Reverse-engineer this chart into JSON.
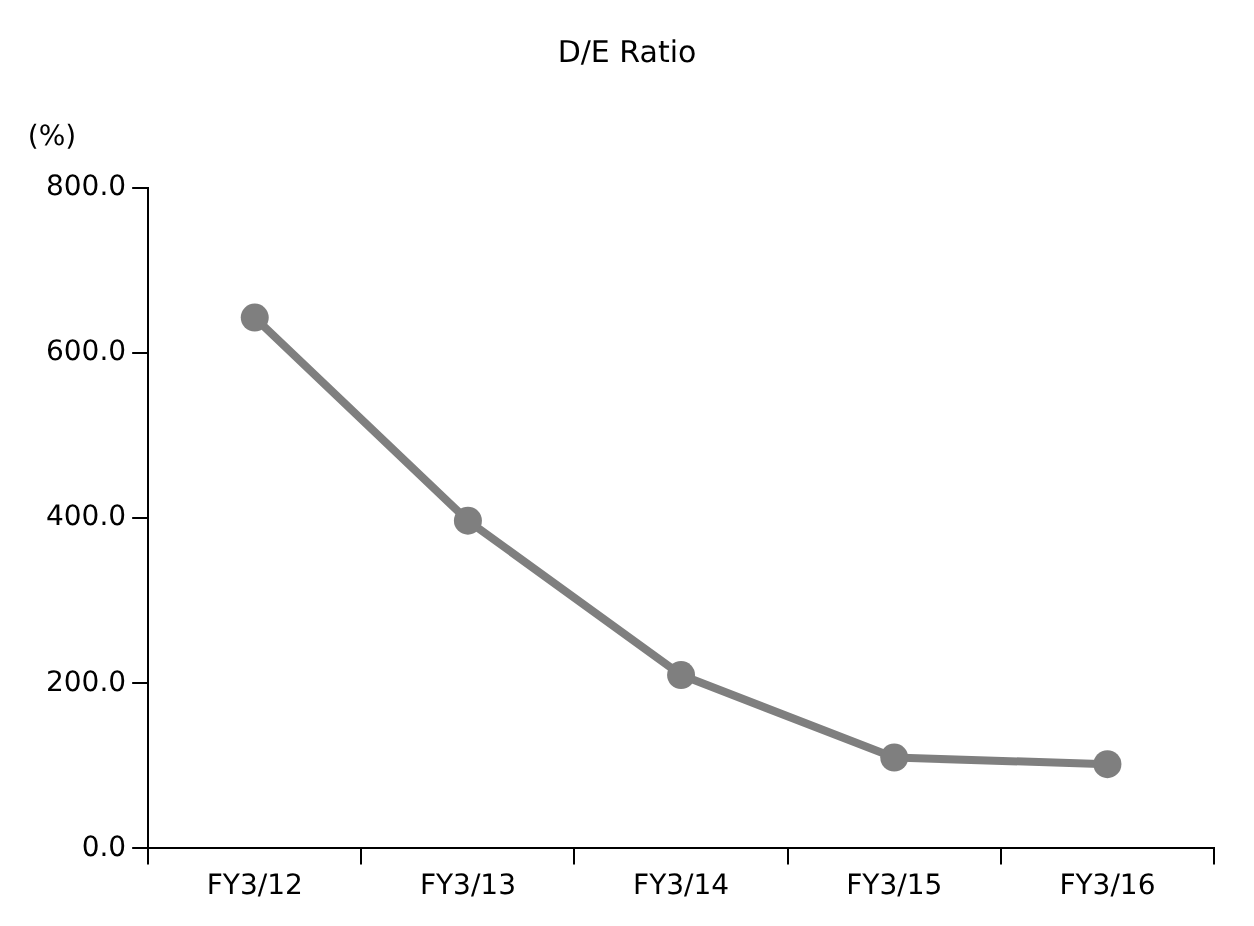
{
  "chart_data": {
    "type": "line",
    "title": "D/E Ratio",
    "ylabel": "(%)",
    "categories": [
      "FY3/12",
      "FY3/13",
      "FY3/14",
      "FY3/15",
      "FY3/16"
    ],
    "series": [
      {
        "color": "#7f7f7f",
        "values": [
          643,
          397,
          210,
          110,
          102
        ]
      }
    ],
    "ylim": [
      0,
      800
    ],
    "yticks": [
      {
        "value": 0,
        "label": "0.0"
      },
      {
        "value": 200,
        "label": "200.0"
      },
      {
        "value": 400,
        "label": "400.0"
      },
      {
        "value": 600,
        "label": "600.0"
      },
      {
        "value": 800,
        "label": "800.0"
      }
    ],
    "grid": false,
    "legend": false,
    "marker": "circle",
    "line_style": "solid"
  }
}
